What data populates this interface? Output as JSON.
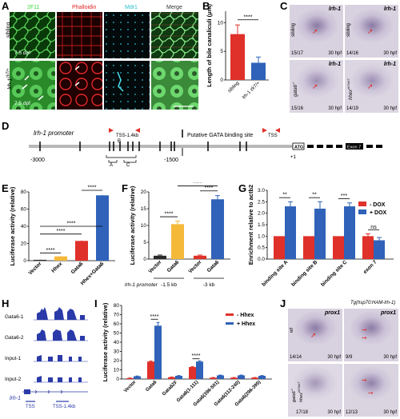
{
  "panels": {
    "A": {
      "label": "A",
      "headers": [
        "2F11",
        "Phalloidin",
        "Mdr1",
        "Merge"
      ],
      "header_colors": [
        "#3ad63a",
        "#e02020",
        "#28c0d0",
        "#333333"
      ],
      "row1_label": "sibling",
      "row2_label": "lrh-1",
      "row2_superscript": "zk7/+",
      "stage": "7.5 dpf"
    },
    "B": {
      "label": "B",
      "significance": "****"
    },
    "C": {
      "label": "C",
      "images": [
        {
          "gene": "lrh-1",
          "genotype": "sibling",
          "count": "15/17",
          "time": "30 hpf"
        },
        {
          "gene": "lrh-1",
          "genotype": "sibling",
          "count": "14/16",
          "time": "30 hpf"
        },
        {
          "gene": "lrh-1",
          "genotype": "gata6",
          "genotype_sup": "-/-",
          "count": "15/16",
          "time": "30 hpf"
        },
        {
          "gene": "lrh-1",
          "genotype": "hhex",
          "genotype_sup": "zk7/zk7",
          "count": "14/19",
          "time": "30 hpf"
        }
      ]
    },
    "D": {
      "label": "D",
      "promoter_title": "lrh-1 promoter",
      "legend_gata": "Putative GATA binding site",
      "tss_label": "TSS",
      "tss14_label": "TSS-1.4kb",
      "atg_label": "ATG",
      "exon_label": "Exon 7",
      "pos_start": "-3000",
      "pos_mid": "-1500",
      "pos_end": "+1",
      "site_letters": [
        "B",
        "A",
        "C"
      ]
    },
    "E": {
      "label": "E"
    },
    "F": {
      "label": "F",
      "promoter_label": "lrh-1 promoter",
      "group_labels": [
        "-1.5 kb",
        "-3 kb"
      ]
    },
    "G": {
      "label": "G"
    },
    "H": {
      "label": "H",
      "tracks": [
        "Gata6-1",
        "Gata6-2",
        "Input-1",
        "Input-2"
      ],
      "gene": "lrh-1",
      "tss_label": "TSS",
      "tss14_label": "TSS-1.4kb"
    },
    "I": {
      "label": "I"
    },
    "J": {
      "label": "J",
      "transgene": "Tg(hsp70:HAM-lrh-1)",
      "images": [
        {
          "gene": "prox1",
          "genotype": "wt",
          "count": "14/14",
          "time": "30 hpf"
        },
        {
          "gene": "prox1",
          "genotype": "",
          "count": "9/9",
          "time": "30 hpf"
        },
        {
          "gene": "",
          "genotype": "gata6",
          "genotype_sup": "-/-",
          "genotype2": "hhex",
          "genotype2_sup": "zk7/zk7",
          "count": "17/18",
          "time": "30 hpf"
        },
        {
          "gene": "",
          "genotype": "",
          "count": "12/13",
          "time": "30 hpf"
        }
      ]
    }
  },
  "chart_data": [
    {
      "id": "B",
      "type": "bar",
      "categories": [
        "sibling",
        "lrh-1 zk7/+"
      ],
      "values": [
        8.0,
        3.0
      ],
      "errors": [
        1.6,
        1.0
      ],
      "colors": [
        "#e0302a",
        "#2f62b8"
      ],
      "ylabel": "Length of bile canaliculi (μm)",
      "yticks": [
        0,
        5,
        10
      ],
      "ylim": [
        0,
        12
      ],
      "annotations": [
        "****"
      ]
    },
    {
      "id": "E",
      "type": "bar",
      "categories": [
        "Vector",
        "Hhex",
        "Gata6",
        "Hhex+Gata6"
      ],
      "values": [
        1.0,
        5.0,
        23.0,
        76.0
      ],
      "errors": [
        0.3,
        0.5,
        0.6,
        0.6
      ],
      "colors": [
        "#2a2a2a",
        "#f5b93a",
        "#e0302a",
        "#2f62b8"
      ],
      "ylabel": "Luciferase activity (relative)",
      "yticks": [
        0,
        20,
        40,
        60,
        80
      ],
      "ylim": [
        0,
        80
      ],
      "annotations": [
        "****",
        "****",
        "****",
        "****"
      ]
    },
    {
      "id": "F",
      "type": "bar",
      "categories": [
        "Vector",
        "Gata6",
        "Vector",
        "Gata6"
      ],
      "values": [
        1.0,
        10.4,
        1.0,
        17.8
      ],
      "errors": [
        0.2,
        0.9,
        0.2,
        1.1
      ],
      "colors": [
        "#2a2a2a",
        "#f5b93a",
        "#e0302a",
        "#2f62b8"
      ],
      "ylabel": "Luciferase activity (relative)",
      "yticks": [
        0,
        5,
        10,
        15,
        20
      ],
      "ylim": [
        0,
        20
      ],
      "annotations": [
        "****",
        "****",
        "****"
      ]
    },
    {
      "id": "G",
      "type": "bar",
      "categories": [
        "binding site A",
        "binding site B",
        "binding site C",
        "exon 7"
      ],
      "series": [
        {
          "name": "- DOX",
          "values": [
            1.0,
            1.0,
            1.0,
            1.0
          ],
          "errors": [
            0,
            0,
            0,
            0.1
          ],
          "color": "#e0302a"
        },
        {
          "name": "+ DOX",
          "values": [
            2.3,
            2.2,
            2.3,
            0.82
          ],
          "errors": [
            0.2,
            0.3,
            0.15,
            0.12
          ],
          "color": "#2f62b8"
        }
      ],
      "ylabel": "Enrichment relative to actb2",
      "yticks": [
        0.0,
        0.5,
        1.0,
        1.5,
        2.0,
        2.5,
        3.0
      ],
      "ylim": [
        0,
        3
      ],
      "annotations": [
        "**",
        "**",
        "***",
        "ns"
      ],
      "legend_position": "top-right"
    },
    {
      "id": "I",
      "type": "bar",
      "categories": [
        "Vector",
        "Gata6",
        "Gata6ZF",
        "Gata6(1-111)",
        "Gata6(396-501)",
        "Gata6(112-240)",
        "Gata6(296-395)"
      ],
      "series": [
        {
          "name": "- Hhex",
          "values": [
            1.0,
            19.0,
            2.0,
            13.0,
            1.5,
            1.5,
            1.5
          ],
          "errors": [
            0.2,
            0.6,
            0.2,
            0.5,
            0.2,
            0.2,
            0.2
          ],
          "color": "#e0302a"
        },
        {
          "name": "+ Hhex",
          "values": [
            3.0,
            58.0,
            3.5,
            19.0,
            4.0,
            4.0,
            3.5
          ],
          "errors": [
            0.3,
            3.5,
            0.3,
            0.8,
            0.3,
            0.3,
            0.3
          ],
          "color": "#2f62b8"
        }
      ],
      "ylabel": "Luciferase activity (relative)",
      "yticks": [
        0,
        10,
        20,
        30,
        40,
        50,
        60,
        70,
        80
      ],
      "ylim": [
        0,
        80
      ],
      "annotations": [
        "****",
        "****"
      ],
      "legend_position": "top-right"
    }
  ]
}
